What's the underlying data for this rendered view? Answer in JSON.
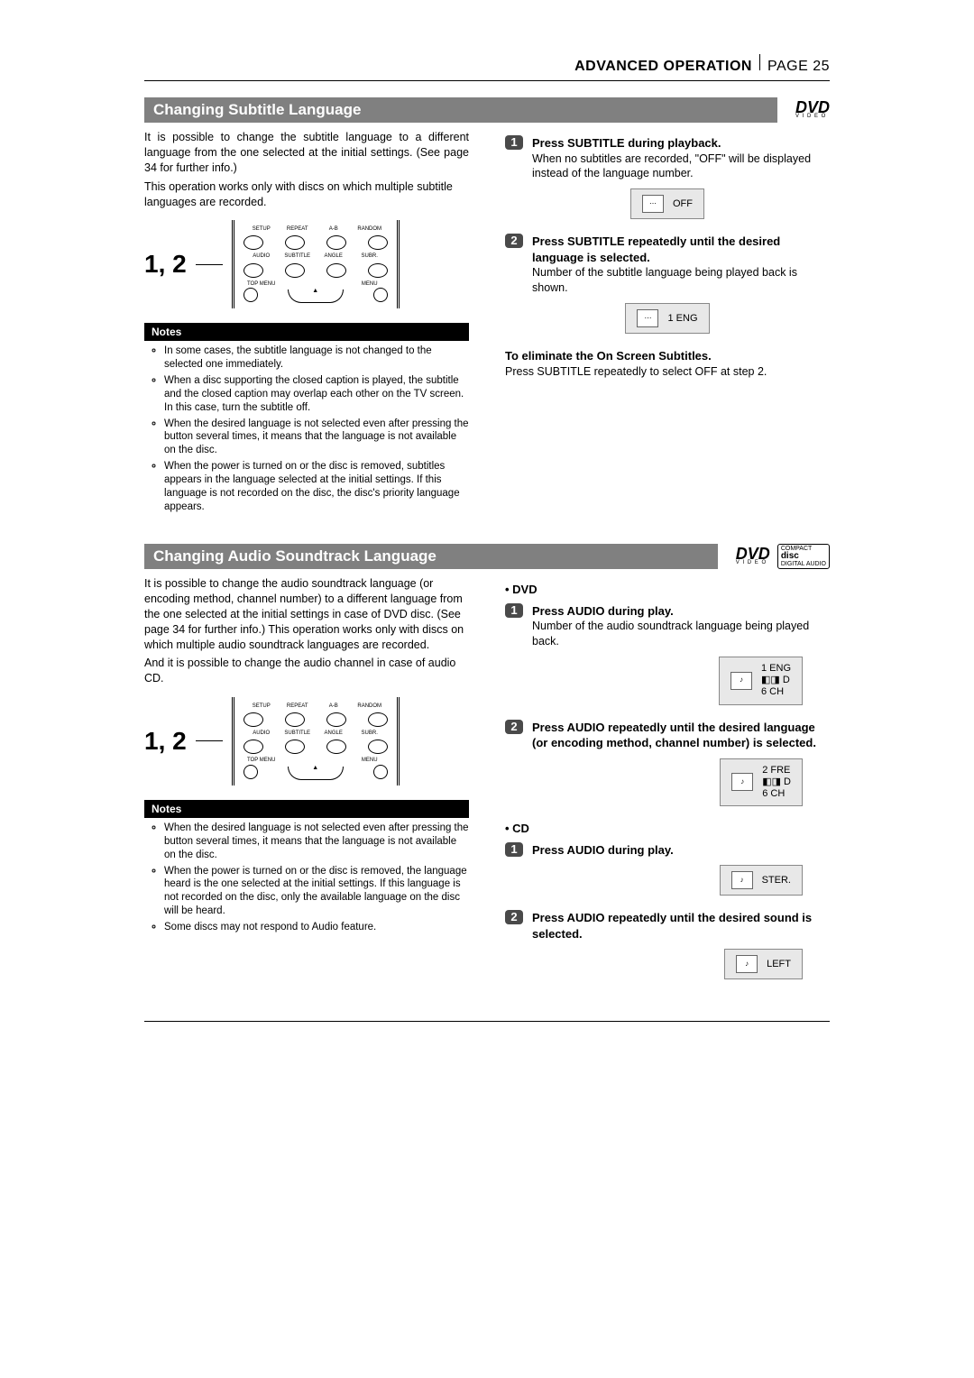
{
  "header": {
    "section": "ADVANCED OPERATION",
    "page": "PAGE 25"
  },
  "section1": {
    "title": "Changing Subtitle Language",
    "logo": "DVD",
    "intro_p1": "It is possible to change the subtitle language to a different language from the one selected at the initial settings. (See page 34 for further info.)",
    "intro_p2": "This operation works only with discs on which multiple subtitle languages are recorded.",
    "fig_label": "1, 2",
    "remote_labels_top": [
      "SETUP",
      "REPEAT",
      "A-B",
      "RANDOM"
    ],
    "remote_labels_mid": [
      "AUDIO",
      "SUBTITLE",
      "ANGLE",
      "SUBR."
    ],
    "remote_labels_bot": [
      "TOP MENU",
      "",
      "",
      "MENU"
    ],
    "notes_header": "Notes",
    "notes": [
      "In some cases, the subtitle language is not changed to the selected one immediately.",
      "When a disc supporting the closed caption is played, the subtitle and the closed caption may overlap each other on the TV screen. In this case, turn the subtitle off.",
      "When the desired language is not selected even after pressing the button several times, it means that the language is not available on the disc.",
      "When the power is turned on or the disc is removed, subtitles appears in the language selected at the initial settings. If this language is not recorded on the disc, the disc's priority language appears."
    ],
    "step1": {
      "num": "1",
      "title": "Press SUBTITLE during playback.",
      "text": "When no subtitles are recorded, \"OFF\" will be displayed instead of the language number.",
      "osd": "OFF"
    },
    "step2": {
      "num": "2",
      "title": "Press SUBTITLE repeatedly until the desired language is selected.",
      "text": "Number of the subtitle language being played back is shown.",
      "osd": "1  ENG"
    },
    "eliminate_heading": "To eliminate the On Screen Subtitles.",
    "eliminate_text": "Press SUBTITLE repeatedly to select OFF at step 2."
  },
  "section2": {
    "title": "Changing Audio Soundtrack Language",
    "intro_p1": "It is possible to change the audio soundtrack language (or encoding method, channel number) to a different language from the one selected at the initial settings in case of DVD disc. (See page 34 for further info.) This operation works only with discs on which multiple audio soundtrack languages are recorded.",
    "intro_p2": "And it is possible to change the audio channel in case of audio CD.",
    "fig_label": "1, 2",
    "notes_header": "Notes",
    "notes": [
      "When the desired language is not selected even after pressing the button several times, it means that the language is not available on the disc.",
      "When the power is turned on or the disc is removed, the language heard is the one selected at the initial settings. If this language is not recorded on the disc, only the available language on the disc will be heard.",
      "Some discs may not respond to Audio feature."
    ],
    "dvd_heading": "DVD",
    "dvd_step1": {
      "num": "1",
      "title": "Press AUDIO during play.",
      "text": "Number of the audio soundtrack language being played back.",
      "osd_l1": "1  ENG",
      "osd_l2": "◧◨ D",
      "osd_l3": "6  CH"
    },
    "dvd_step2": {
      "num": "2",
      "title": "Press AUDIO repeatedly until the desired language (or encoding method, channel number) is selected.",
      "osd_l1": "2  FRE",
      "osd_l2": "◧◨ D",
      "osd_l3": "6  CH"
    },
    "cd_heading": "CD",
    "cd_step1": {
      "num": "1",
      "title": "Press AUDIO during play.",
      "osd": "STER."
    },
    "cd_step2": {
      "num": "2",
      "title": "Press AUDIO repeatedly until the desired sound is selected.",
      "osd": "LEFT"
    }
  }
}
